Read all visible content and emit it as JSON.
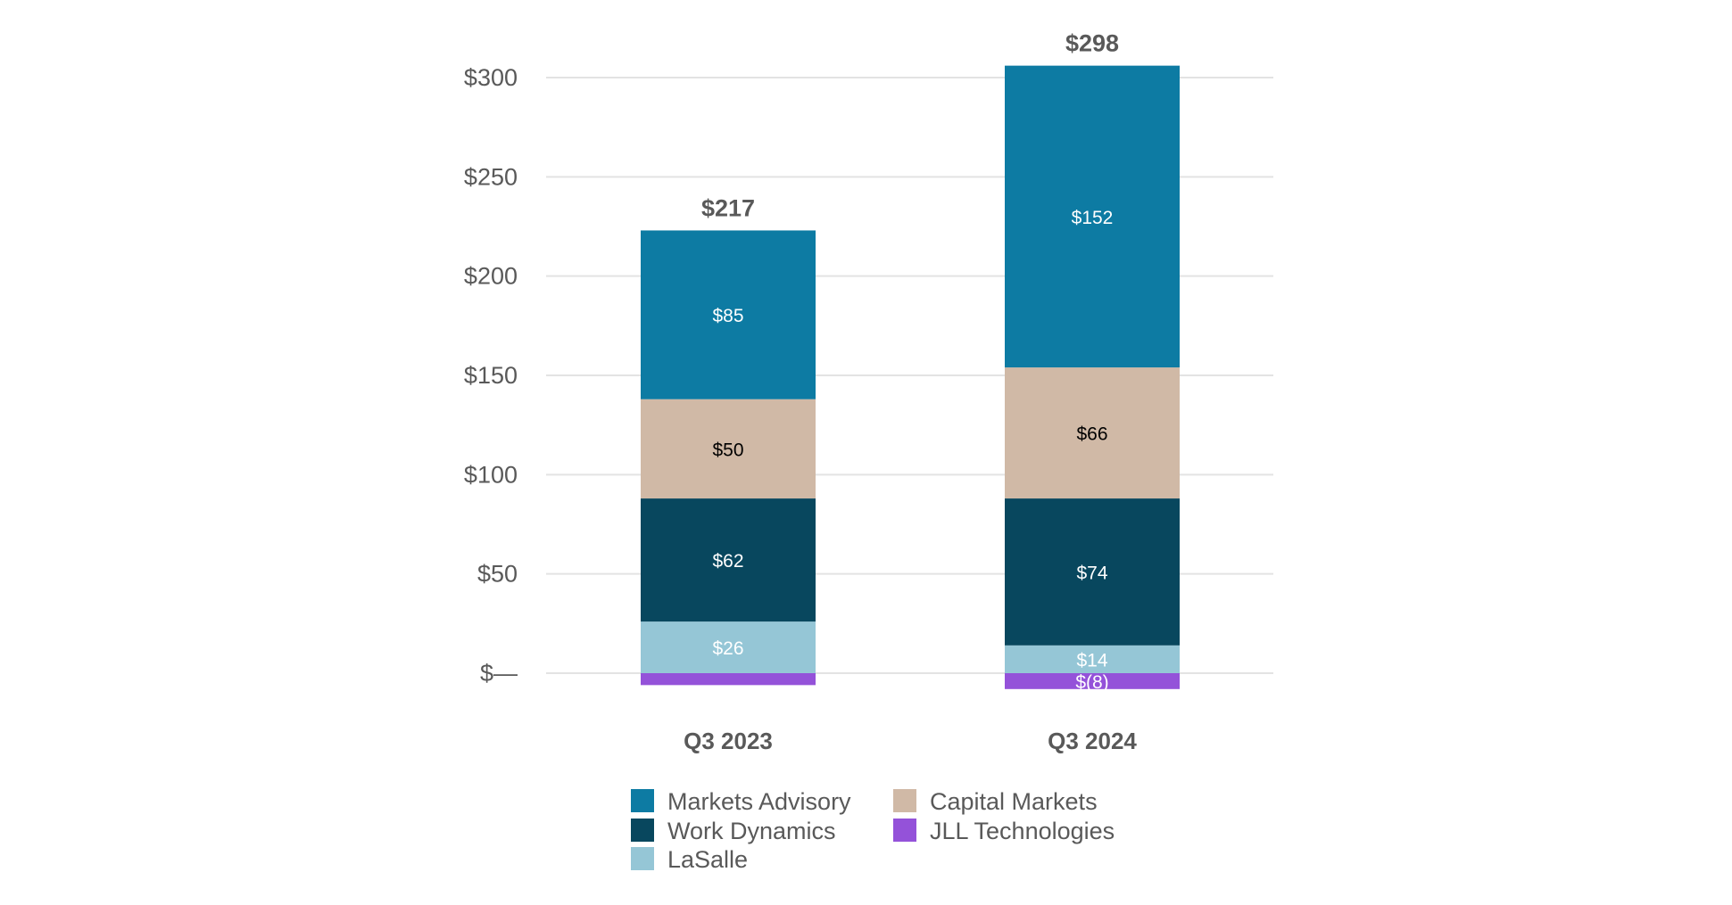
{
  "chart_data": {
    "type": "bar",
    "stacked": true,
    "title": "",
    "xlabel": "",
    "ylabel": "",
    "ylim": [
      -10,
      300
    ],
    "y_ticks": [
      0,
      50,
      100,
      150,
      200,
      250,
      300
    ],
    "y_tick_labels": [
      "$—",
      "$50",
      "$100",
      "$150",
      "$200",
      "$250",
      "$300"
    ],
    "grid": true,
    "legend_position": "bottom",
    "categories": [
      "Q3 2023",
      "Q3 2024"
    ],
    "totals": [
      217,
      298
    ],
    "total_labels": [
      "$217",
      "$298"
    ],
    "series": [
      {
        "name": "LaSalle",
        "color": "#95c6d6",
        "label_color": "#ffffff",
        "values": [
          26,
          14
        ],
        "labels": [
          "$26",
          "$14"
        ]
      },
      {
        "name": "Work Dynamics",
        "color": "#08475e",
        "label_color": "#ffffff",
        "values": [
          62,
          74
        ],
        "labels": [
          "$62",
          "$74"
        ]
      },
      {
        "name": "Capital Markets",
        "color": "#d0b9a6",
        "label_color": "#000000",
        "values": [
          50,
          66
        ],
        "labels": [
          "$50",
          "$66"
        ]
      },
      {
        "name": "Markets Advisory",
        "color": "#0d7ba3",
        "label_color": "#ffffff",
        "values": [
          85,
          152
        ],
        "labels": [
          "$85",
          "$152"
        ]
      },
      {
        "name": "JLL Technologies",
        "color": "#9452d9",
        "label_color": "#ffffff",
        "values": [
          -6,
          -8
        ],
        "labels": [
          "",
          "$(8)"
        ]
      }
    ],
    "legend_order": [
      "Markets Advisory",
      "Capital Markets",
      "Work Dynamics",
      "JLL Technologies",
      "LaSalle"
    ]
  }
}
